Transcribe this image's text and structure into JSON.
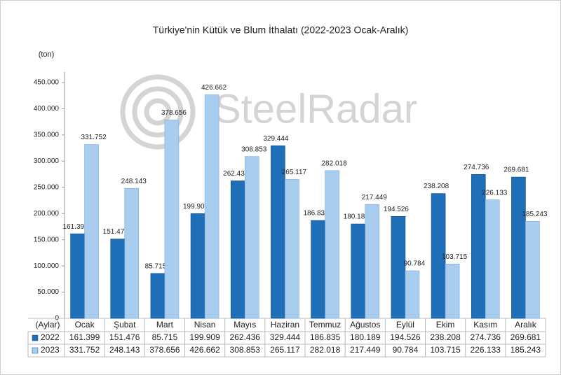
{
  "chart_data": {
    "type": "bar",
    "title": "Türkiye'nin Kütük ve Blum İthalatı (2022-2023 Ocak-Aralık)",
    "y_label": "(ton)",
    "x_label": "(Aylar)",
    "watermark": "SteelRadar",
    "categories": [
      "Ocak",
      "Şubat",
      "Mart",
      "Nisan",
      "Mayıs",
      "Haziran",
      "Temmuz",
      "Ağustos",
      "Eylül",
      "Ekim",
      "Kasım",
      "Aralık"
    ],
    "series": [
      {
        "name": "2022",
        "color": "#1f6fb8",
        "values": [
          161399,
          151476,
          85715,
          199909,
          262436,
          329444,
          186835,
          180189,
          194526,
          238208,
          274736,
          269681
        ],
        "value_labels": [
          "161.399",
          "151.476",
          "85.715",
          "199.909",
          "262.436",
          "329.444",
          "186.835",
          "180.189",
          "194.526",
          "238.208",
          "274.736",
          "269.681"
        ]
      },
      {
        "name": "2023",
        "color": "#a8cdee",
        "values": [
          331752,
          248143,
          378656,
          426662,
          308853,
          265117,
          282018,
          217449,
          90784,
          103715,
          226133,
          185243
        ],
        "value_labels": [
          "331.752",
          "248.143",
          "378.656",
          "426.662",
          "308.853",
          "265.117",
          "282.018",
          "217.449",
          "90.784",
          "103.715",
          "226.133",
          "185.243"
        ]
      }
    ],
    "ylim": [
      0,
      450000
    ],
    "yticks": [
      0,
      {
        "value": 50000,
        "label": "50.000"
      },
      {
        "value": 100000,
        "label": "100.000"
      },
      {
        "value": 150000,
        "label": "150.000"
      },
      {
        "value": 200000,
        "label": "200.000"
      },
      {
        "value": 250000,
        "label": "250.000"
      },
      {
        "value": 300000,
        "label": "300.000"
      },
      {
        "value": 350000,
        "label": "350.000"
      },
      {
        "value": 400000,
        "label": "400.000"
      },
      {
        "value": 450000,
        "label": "450.000"
      }
    ],
    "grid": false
  }
}
